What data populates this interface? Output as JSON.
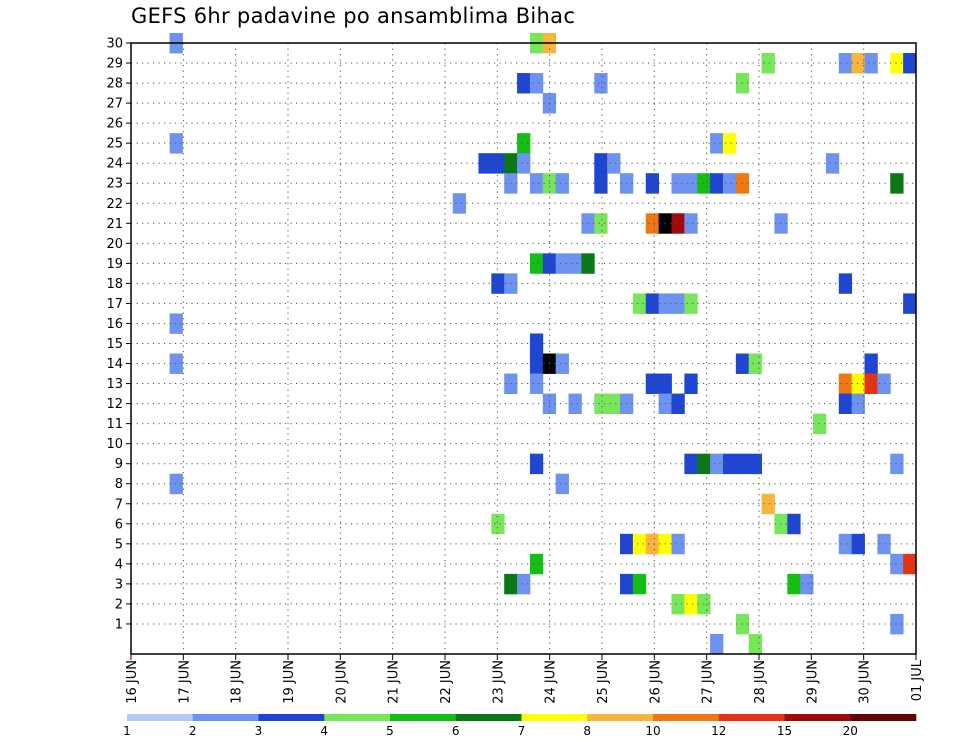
{
  "title": "GEFS 6hr padavine po ansamblima Bihac",
  "chart_data": {
    "type": "heatmap",
    "title": "GEFS 6hr padavine po ansamblima Bihac",
    "xlabel": "",
    "ylabel": "",
    "x_ticks": [
      "16 JUN",
      "17 JUN",
      "18 JUN",
      "19 JUN",
      "20 JUN",
      "21 JUN",
      "22 JUN",
      "23 JUN",
      "24 JUN",
      "25 JUN",
      "26 JUN",
      "27 JUN",
      "28 JUN",
      "29 JUN",
      "30 JUN",
      "01 JUL"
    ],
    "y_ticks": [
      "1",
      "2",
      "3",
      "4",
      "5",
      "6",
      "7",
      "8",
      "9",
      "10",
      "11",
      "12",
      "13",
      "14",
      "15",
      "16",
      "17",
      "18",
      "19",
      "20",
      "21",
      "22",
      "23",
      "24",
      "25",
      "26",
      "27",
      "28",
      "29",
      "30"
    ],
    "xlim": [
      0,
      61
    ],
    "ylim": [
      0,
      30
    ],
    "grid": true,
    "legend_position": "bottom",
    "colorbar": {
      "labels": [
        "1",
        "2",
        "3",
        "4",
        "5",
        "6",
        "7",
        "8",
        "10",
        "12",
        "15",
        "20"
      ],
      "colors": [
        "#b4c8f8",
        "#6e92f0",
        "#1e46d2",
        "#78e65a",
        "#14be14",
        "#0a7814",
        "#ffff00",
        "#fab43c",
        "#f07814",
        "#e63214",
        "#a00a0a",
        "#640000"
      ]
    },
    "cells": [
      [
        30,
        3,
        1
      ],
      [
        30,
        31,
        3
      ],
      [
        30,
        32,
        7
      ],
      [
        29,
        49,
        3
      ],
      [
        29,
        55,
        1
      ],
      [
        29,
        56,
        7
      ],
      [
        29,
        57,
        1
      ],
      [
        29,
        59,
        6
      ],
      [
        29,
        60,
        2
      ],
      [
        28,
        30,
        2
      ],
      [
        28,
        31,
        1
      ],
      [
        28,
        36,
        1
      ],
      [
        28,
        47,
        3
      ],
      [
        27,
        32,
        1
      ],
      [
        25,
        3,
        1
      ],
      [
        25,
        30,
        4
      ],
      [
        25,
        45,
        1
      ],
      [
        25,
        46,
        6
      ],
      [
        24,
        27,
        2
      ],
      [
        24,
        28,
        2
      ],
      [
        24,
        29,
        5
      ],
      [
        24,
        30,
        1
      ],
      [
        24,
        36,
        2
      ],
      [
        24,
        37,
        1
      ],
      [
        24,
        54,
        1
      ],
      [
        23,
        29,
        1
      ],
      [
        23,
        31,
        1
      ],
      [
        23,
        32,
        3
      ],
      [
        23,
        33,
        1
      ],
      [
        23,
        36,
        2
      ],
      [
        23,
        38,
        1
      ],
      [
        23,
        40,
        2
      ],
      [
        23,
        42,
        1
      ],
      [
        23,
        43,
        1
      ],
      [
        23,
        44,
        4
      ],
      [
        23,
        45,
        2
      ],
      [
        23,
        46,
        1
      ],
      [
        23,
        47,
        8
      ],
      [
        23,
        59,
        5
      ],
      [
        22,
        25,
        1
      ],
      [
        21,
        35,
        1
      ],
      [
        21,
        36,
        3
      ],
      [
        21,
        40,
        8
      ],
      [
        21,
        41,
        12
      ],
      [
        21,
        42,
        10
      ],
      [
        21,
        43,
        1
      ],
      [
        21,
        50,
        1
      ],
      [
        19,
        31,
        4
      ],
      [
        19,
        32,
        2
      ],
      [
        19,
        33,
        1
      ],
      [
        19,
        34,
        1
      ],
      [
        19,
        35,
        5
      ],
      [
        18,
        28,
        2
      ],
      [
        18,
        29,
        1
      ],
      [
        18,
        55,
        2
      ],
      [
        17,
        39,
        3
      ],
      [
        17,
        40,
        2
      ],
      [
        17,
        41,
        1
      ],
      [
        17,
        42,
        1
      ],
      [
        17,
        43,
        3
      ],
      [
        17,
        60,
        2
      ],
      [
        16,
        3,
        1
      ],
      [
        15,
        31,
        2
      ],
      [
        14,
        3,
        1
      ],
      [
        14,
        31,
        2
      ],
      [
        14,
        32,
        12
      ],
      [
        14,
        33,
        1
      ],
      [
        14,
        47,
        2
      ],
      [
        14,
        48,
        3
      ],
      [
        14,
        57,
        2
      ],
      [
        13,
        29,
        1
      ],
      [
        13,
        31,
        1
      ],
      [
        13,
        40,
        2
      ],
      [
        13,
        41,
        2
      ],
      [
        13,
        43,
        2
      ],
      [
        13,
        55,
        8
      ],
      [
        13,
        56,
        6
      ],
      [
        13,
        57,
        9
      ],
      [
        13,
        58,
        1
      ],
      [
        12,
        32,
        1
      ],
      [
        12,
        34,
        1
      ],
      [
        12,
        36,
        3
      ],
      [
        12,
        37,
        3
      ],
      [
        12,
        38,
        1
      ],
      [
        12,
        41,
        1
      ],
      [
        12,
        42,
        2
      ],
      [
        12,
        55,
        2
      ],
      [
        12,
        56,
        1
      ],
      [
        11,
        53,
        3
      ],
      [
        9,
        31,
        2
      ],
      [
        9,
        43,
        2
      ],
      [
        9,
        44,
        5
      ],
      [
        9,
        45,
        1
      ],
      [
        9,
        46,
        2
      ],
      [
        9,
        47,
        2
      ],
      [
        9,
        48,
        2
      ],
      [
        9,
        59,
        1
      ],
      [
        8,
        3,
        1
      ],
      [
        8,
        33,
        1
      ],
      [
        7,
        49,
        7
      ],
      [
        6,
        28,
        3
      ],
      [
        6,
        50,
        3
      ],
      [
        6,
        51,
        2
      ],
      [
        5,
        38,
        2
      ],
      [
        5,
        39,
        6
      ],
      [
        5,
        40,
        7
      ],
      [
        5,
        41,
        6
      ],
      [
        5,
        42,
        1
      ],
      [
        5,
        55,
        1
      ],
      [
        5,
        56,
        2
      ],
      [
        5,
        58,
        1
      ],
      [
        4,
        31,
        4
      ],
      [
        4,
        59,
        1
      ],
      [
        4,
        60,
        9
      ],
      [
        3,
        29,
        5
      ],
      [
        3,
        30,
        1
      ],
      [
        3,
        38,
        2
      ],
      [
        3,
        39,
        4
      ],
      [
        3,
        51,
        4
      ],
      [
        3,
        52,
        1
      ],
      [
        2,
        42,
        3
      ],
      [
        2,
        43,
        6
      ],
      [
        2,
        44,
        3
      ],
      [
        1,
        47,
        3
      ],
      [
        1,
        59,
        1
      ],
      [
        0,
        45,
        1
      ],
      [
        0,
        48,
        3
      ]
    ]
  }
}
